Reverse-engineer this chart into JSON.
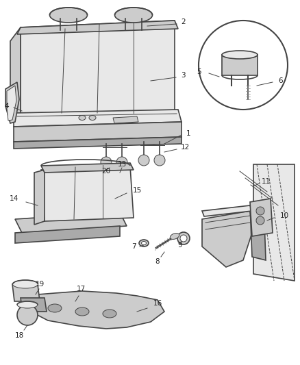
{
  "bg_color": "#f5f5f5",
  "line_color": "#444444",
  "label_color": "#222222",
  "fig_width": 4.38,
  "fig_height": 5.33,
  "dpi": 100,
  "lw_main": 1.2,
  "lw_thin": 0.7,
  "lw_thick": 1.8,
  "gray_light": "#e8e8e8",
  "gray_mid": "#cccccc",
  "gray_dark": "#aaaaaa",
  "gray_fill": "#d8d8d8",
  "white": "#ffffff"
}
